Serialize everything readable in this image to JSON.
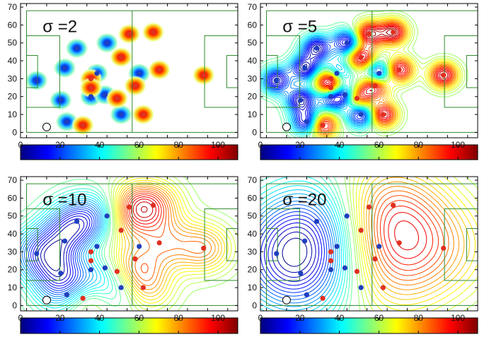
{
  "figure": {
    "x_ticks": [
      "0",
      "10",
      "20",
      "30",
      "40",
      "50",
      "60",
      "70",
      "80",
      "90",
      "100"
    ],
    "y_ticks": [
      "0",
      "10",
      "20",
      "30",
      "40",
      "50",
      "60",
      "70"
    ],
    "colorbar_ticks": [
      "0",
      "20",
      "40",
      "60",
      "80",
      "100"
    ],
    "colormap": [
      "#00007f",
      "#0000ff",
      "#007fff",
      "#00ffff",
      "#7fff7f",
      "#ffff00",
      "#ff7f00",
      "#ff0000",
      "#7f0000"
    ],
    "pitch_line_color": "#2e8b2e"
  },
  "chart_data": [
    {
      "type": "heatmap",
      "title": "σ =2",
      "xlim": [
        -3,
        105
      ],
      "ylim": [
        -3,
        72
      ],
      "colorbar_range": [
        0,
        110
      ],
      "grid": false,
      "ball": {
        "x": 10,
        "y": 3
      },
      "blue_players": [
        [
          5,
          29
        ],
        [
          17,
          18
        ],
        [
          19,
          36
        ],
        [
          20,
          6
        ],
        [
          25,
          47
        ],
        [
          32,
          20
        ],
        [
          35,
          33
        ],
        [
          39,
          21
        ],
        [
          40,
          50
        ],
        [
          47,
          10
        ],
        [
          56,
          33
        ]
      ],
      "red_players": [
        [
          28,
          4
        ],
        [
          32,
          30
        ],
        [
          32,
          25
        ],
        [
          45,
          19
        ],
        [
          47,
          42
        ],
        [
          51,
          55
        ],
        [
          54,
          26
        ],
        [
          58,
          10
        ],
        [
          63,
          56
        ],
        [
          66,
          35
        ],
        [
          88,
          32
        ]
      ],
      "surface_style": "filled-blobs"
    },
    {
      "type": "heatmap",
      "title": "σ =5",
      "xlim": [
        -3,
        105
      ],
      "ylim": [
        -3,
        72
      ],
      "colorbar_range": [
        0,
        110
      ],
      "grid": false,
      "ball": {
        "x": 10,
        "y": 3
      },
      "blue_players": [
        [
          5,
          29
        ],
        [
          17,
          18
        ],
        [
          19,
          36
        ],
        [
          20,
          6
        ],
        [
          25,
          47
        ],
        [
          32,
          20
        ],
        [
          35,
          33
        ],
        [
          39,
          21
        ],
        [
          40,
          50
        ],
        [
          47,
          10
        ],
        [
          56,
          33
        ]
      ],
      "red_players": [
        [
          28,
          4
        ],
        [
          32,
          30
        ],
        [
          32,
          25
        ],
        [
          45,
          19
        ],
        [
          47,
          42
        ],
        [
          51,
          55
        ],
        [
          54,
          26
        ],
        [
          58,
          10
        ],
        [
          63,
          56
        ],
        [
          66,
          35
        ],
        [
          88,
          32
        ]
      ],
      "surface_style": "contours"
    },
    {
      "type": "heatmap",
      "title": "σ =10",
      "xlim": [
        -3,
        105
      ],
      "ylim": [
        -3,
        72
      ],
      "colorbar_range": [
        0,
        110
      ],
      "grid": false,
      "ball": {
        "x": 10,
        "y": 3
      },
      "blue_players": [
        [
          5,
          29
        ],
        [
          17,
          18
        ],
        [
          19,
          36
        ],
        [
          20,
          6
        ],
        [
          25,
          47
        ],
        [
          32,
          20
        ],
        [
          35,
          33
        ],
        [
          39,
          21
        ],
        [
          40,
          50
        ],
        [
          47,
          10
        ],
        [
          56,
          33
        ]
      ],
      "red_players": [
        [
          28,
          4
        ],
        [
          32,
          30
        ],
        [
          32,
          25
        ],
        [
          45,
          19
        ],
        [
          47,
          42
        ],
        [
          51,
          55
        ],
        [
          54,
          26
        ],
        [
          58,
          10
        ],
        [
          63,
          56
        ],
        [
          66,
          35
        ],
        [
          88,
          32
        ]
      ],
      "surface_style": "contours"
    },
    {
      "type": "heatmap",
      "title": "σ =20",
      "xlim": [
        -3,
        105
      ],
      "ylim": [
        -3,
        72
      ],
      "colorbar_range": [
        0,
        110
      ],
      "grid": false,
      "ball": {
        "x": 10,
        "y": 3
      },
      "blue_players": [
        [
          5,
          29
        ],
        [
          17,
          18
        ],
        [
          19,
          36
        ],
        [
          20,
          6
        ],
        [
          25,
          47
        ],
        [
          32,
          20
        ],
        [
          35,
          33
        ],
        [
          39,
          21
        ],
        [
          40,
          50
        ],
        [
          47,
          10
        ],
        [
          56,
          33
        ]
      ],
      "red_players": [
        [
          28,
          4
        ],
        [
          32,
          30
        ],
        [
          32,
          25
        ],
        [
          45,
          19
        ],
        [
          47,
          42
        ],
        [
          51,
          55
        ],
        [
          54,
          26
        ],
        [
          58,
          10
        ],
        [
          63,
          56
        ],
        [
          66,
          35
        ],
        [
          88,
          32
        ]
      ],
      "surface_style": "contours"
    }
  ]
}
